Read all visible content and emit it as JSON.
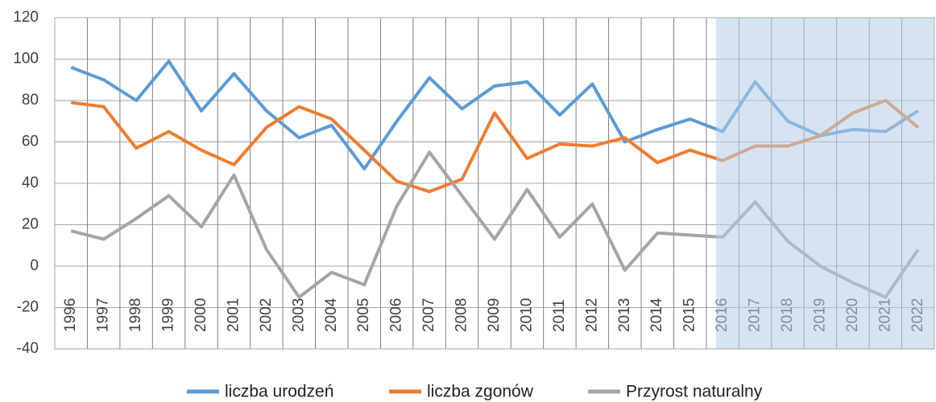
{
  "chart_data": {
    "type": "line",
    "categories": [
      "1996",
      "1997",
      "1998",
      "1999",
      "2000",
      "2001",
      "2002",
      "2003",
      "2004",
      "2005",
      "2006",
      "2007",
      "2008",
      "2009",
      "2010",
      "2011",
      "2012",
      "2013",
      "2014",
      "2015",
      "2016",
      "2017",
      "2018",
      "2019",
      "2020",
      "2021",
      "2022"
    ],
    "series": [
      {
        "name": "liczba urodzeń",
        "color": "#5b9bd5",
        "values": [
          96,
          90,
          80,
          99,
          75,
          93,
          75,
          62,
          68,
          47,
          70,
          91,
          76,
          87,
          89,
          73,
          88,
          60,
          66,
          71,
          65,
          89,
          70,
          63,
          66,
          65,
          75
        ]
      },
      {
        "name": "liczba zgonów",
        "color": "#ed7d31",
        "values": [
          79,
          77,
          57,
          65,
          56,
          49,
          67,
          77,
          71,
          56,
          41,
          36,
          42,
          74,
          52,
          59,
          58,
          62,
          50,
          56,
          51,
          58,
          58,
          63,
          74,
          80,
          67
        ]
      },
      {
        "name": "Przyrost naturalny",
        "color": "#a5a5a5",
        "values": [
          17,
          13,
          23,
          34,
          19,
          44,
          8,
          -15,
          -3,
          -9,
          29,
          55,
          34,
          13,
          37,
          14,
          30,
          -2,
          16,
          15,
          14,
          31,
          12,
          0,
          -8,
          -15,
          8
        ]
      }
    ],
    "ylim": [
      -40,
      120
    ],
    "yticks": [
      -40,
      -20,
      0,
      20,
      40,
      60,
      80,
      100,
      120
    ],
    "grid": true,
    "legend": "bottom",
    "shade_from": "2016",
    "shade_color": "#b4cde8"
  }
}
